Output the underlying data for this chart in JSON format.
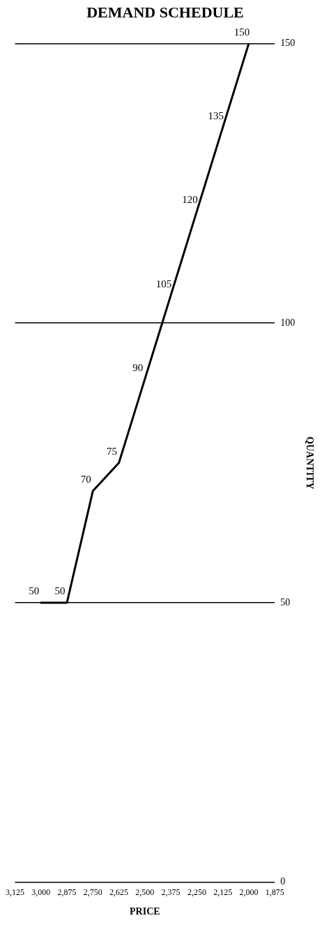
{
  "chart_data": {
    "type": "line",
    "title": "DEMAND SCHEDULE",
    "xlabel": "PRICE",
    "ylabel": "QUANTITY",
    "x": [
      3000,
      2875,
      2750,
      2625,
      2500,
      2375,
      2250,
      2125,
      2000
    ],
    "series": [
      {
        "color": "#000000",
        "values": [
          50,
          50,
          70,
          75,
          90,
          105,
          120,
          135,
          150
        ]
      }
    ],
    "data_labels": true,
    "xlim": [
      3125,
      1875
    ],
    "xticks": [
      {
        "value": 3125,
        "label": "3,125"
      },
      {
        "value": 3000,
        "label": "3,000"
      },
      {
        "value": 2875,
        "label": "2,875"
      },
      {
        "value": 2750,
        "label": "2,750"
      },
      {
        "value": 2625,
        "label": "2,625"
      },
      {
        "value": 2500,
        "label": "2,500"
      },
      {
        "value": 2375,
        "label": "2,375"
      },
      {
        "value": 2250,
        "label": "2,250"
      },
      {
        "value": 2125,
        "label": "2,125"
      },
      {
        "value": 2000,
        "label": "2,000"
      },
      {
        "value": 1875,
        "label": "1,875"
      }
    ],
    "ylim": [
      0,
      150
    ],
    "yticks": [
      0,
      50,
      100,
      150
    ],
    "grid": "y",
    "legend": false,
    "marker": "none",
    "line_style": "solid"
  }
}
